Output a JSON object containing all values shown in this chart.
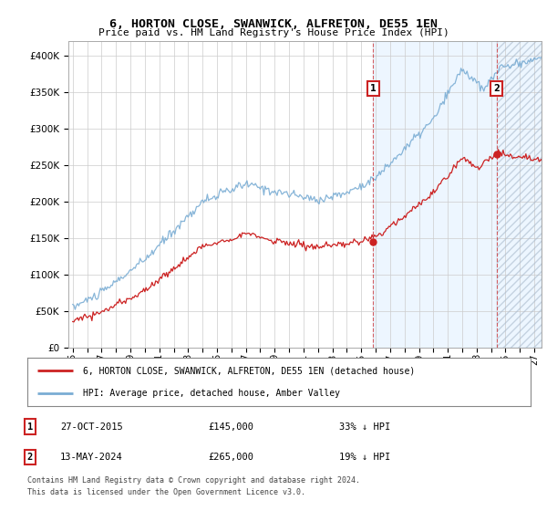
{
  "title": "6, HORTON CLOSE, SWANWICK, ALFRETON, DE55 1EN",
  "subtitle": "Price paid vs. HM Land Registry's House Price Index (HPI)",
  "ylim": [
    0,
    420000
  ],
  "transaction1_year": 2015.833,
  "transaction1_price": 145000,
  "transaction2_year": 2024.375,
  "transaction2_price": 265000,
  "legend_line1": "6, HORTON CLOSE, SWANWICK, ALFRETON, DE55 1EN (detached house)",
  "legend_line2": "HPI: Average price, detached house, Amber Valley",
  "footer1": "Contains HM Land Registry data © Crown copyright and database right 2024.",
  "footer2": "This data is licensed under the Open Government Licence v3.0.",
  "table_row1_label": "1",
  "table_row1_date": "27-OCT-2015",
  "table_row1_price": "£145,000",
  "table_row1_hpi": "33% ↓ HPI",
  "table_row2_label": "2",
  "table_row2_date": "13-MAY-2024",
  "table_row2_price": "£265,000",
  "table_row2_hpi": "19% ↓ HPI",
  "red_color": "#cc2222",
  "blue_color": "#7aadd4",
  "blue_fill": "#ddeeff",
  "background_color": "#ffffff",
  "grid_color": "#cccccc",
  "xstart": 1995,
  "xend": 2027
}
